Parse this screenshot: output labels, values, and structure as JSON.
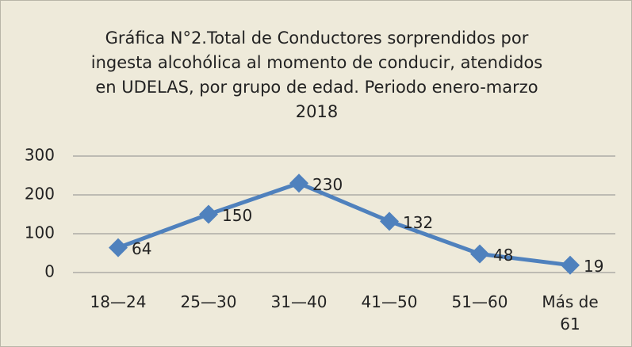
{
  "chart_data": {
    "type": "line",
    "title": [
      "Gráfica N°2.Total de Conductores sorprendidos por",
      "ingesta alcohólica al momento de conducir, atendidos",
      "en UDELAS, por grupo de edad.  Periodo enero-marzo",
      "2018"
    ],
    "categories": [
      "18—24",
      "25—30",
      "31—40",
      "41—50",
      "51—60",
      "Más de 61"
    ],
    "series": [
      {
        "color": "#4f81bd",
        "values": [
          64,
          150,
          230,
          132,
          48,
          19
        ]
      }
    ],
    "ylim": [
      0,
      300
    ],
    "yticks": [
      0,
      100,
      200,
      300
    ],
    "grid": true
  }
}
